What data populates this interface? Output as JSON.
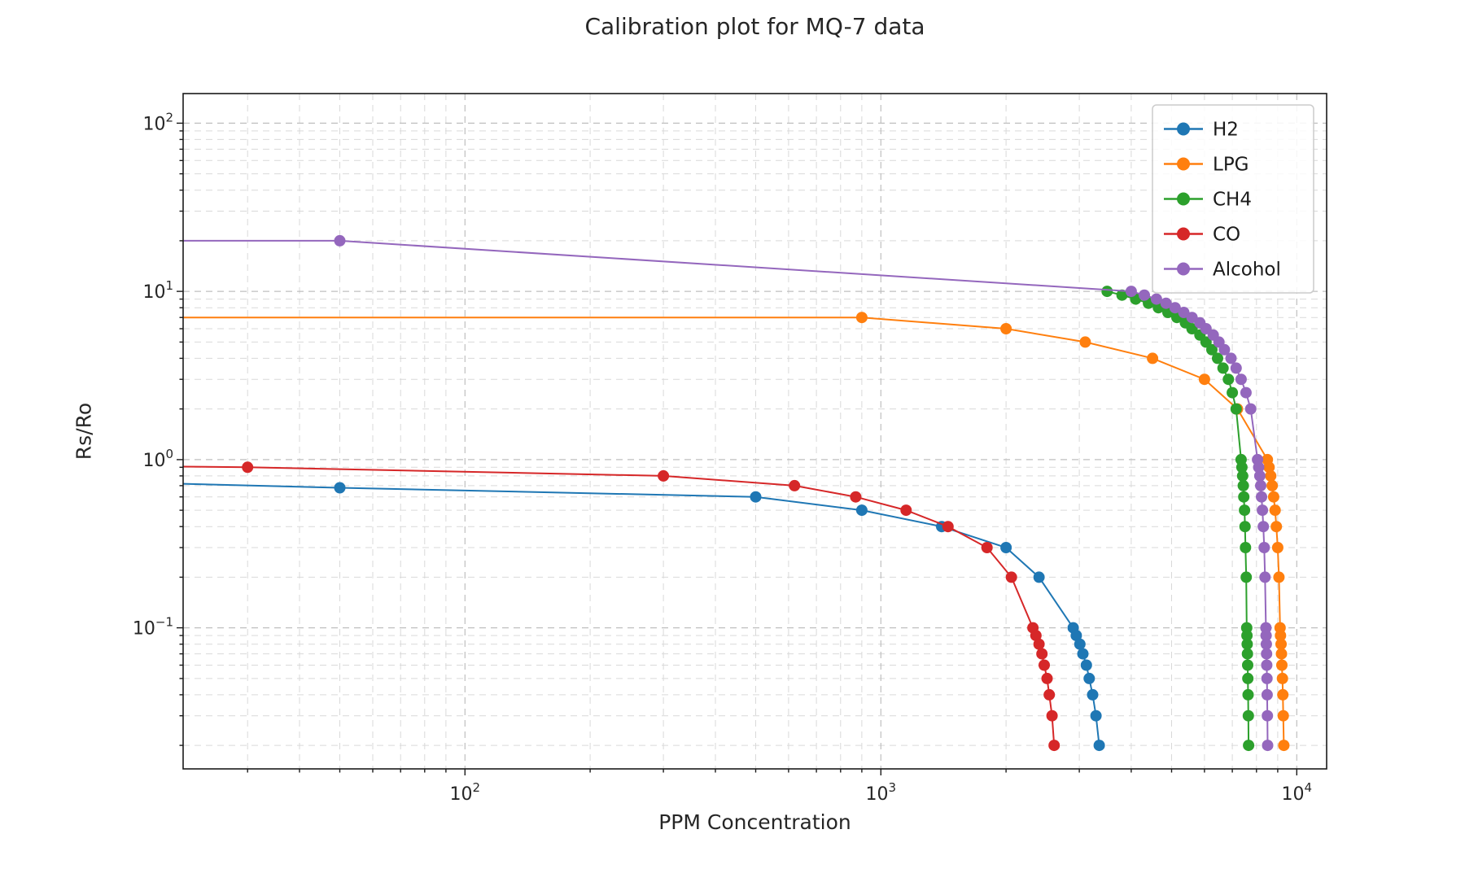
{
  "chart_data": {
    "type": "line",
    "title": "Calibration plot for MQ-7 data",
    "xlabel": "PPM Concentration",
    "ylabel": "Rs/Ro",
    "x_scale": "log",
    "y_scale": "log",
    "xlim": [
      21,
      11800
    ],
    "ylim": [
      0.0145,
      150
    ],
    "x_ticks": [
      100,
      1000,
      10000
    ],
    "y_ticks": [
      0.1,
      1,
      10,
      100
    ],
    "x_tick_labels": [
      "10^2",
      "10^3",
      "10^4"
    ],
    "y_tick_labels": [
      "10^-1",
      "10^0",
      "10^1",
      "10^2"
    ],
    "grid": {
      "which": "both",
      "style": "dashed",
      "major_color": "#bfbfbf",
      "minor_color": "#d9d9d9"
    },
    "legend": {
      "position": "upper right",
      "entries": [
        "H2",
        "LPG",
        "CH4",
        "CO",
        "Alcohol"
      ]
    },
    "series": [
      {
        "name": "H2",
        "color": "#1f77b4",
        "marker": "circle",
        "points": [
          [
            20,
            0.72
          ],
          [
            50,
            0.68
          ],
          [
            500,
            0.6
          ],
          [
            900,
            0.5
          ],
          [
            1400,
            0.4
          ],
          [
            2000,
            0.3
          ],
          [
            2400,
            0.2
          ],
          [
            2900,
            0.1
          ],
          [
            2950,
            0.09
          ],
          [
            3010,
            0.08
          ],
          [
            3060,
            0.07
          ],
          [
            3120,
            0.06
          ],
          [
            3170,
            0.05
          ],
          [
            3230,
            0.04
          ],
          [
            3290,
            0.03
          ],
          [
            3350,
            0.02
          ]
        ]
      },
      {
        "name": "LPG",
        "color": "#ff7f0e",
        "marker": "circle",
        "points": [
          [
            20,
            7
          ],
          [
            900,
            7
          ],
          [
            2000,
            6
          ],
          [
            3100,
            5
          ],
          [
            4500,
            4
          ],
          [
            6000,
            3
          ],
          [
            7200,
            2
          ],
          [
            8500,
            1
          ],
          [
            8580,
            0.9
          ],
          [
            8660,
            0.8
          ],
          [
            8730,
            0.7
          ],
          [
            8800,
            0.6
          ],
          [
            8870,
            0.5
          ],
          [
            8930,
            0.4
          ],
          [
            9000,
            0.3
          ],
          [
            9060,
            0.2
          ],
          [
            9120,
            0.1
          ],
          [
            9140,
            0.09
          ],
          [
            9170,
            0.08
          ],
          [
            9190,
            0.07
          ],
          [
            9210,
            0.06
          ],
          [
            9240,
            0.05
          ],
          [
            9260,
            0.04
          ],
          [
            9280,
            0.03
          ],
          [
            9310,
            0.02
          ]
        ]
      },
      {
        "name": "CH4",
        "color": "#2ca02c",
        "marker": "circle",
        "points": [
          [
            3500,
            10
          ],
          [
            3800,
            9.5
          ],
          [
            4100,
            9
          ],
          [
            4400,
            8.5
          ],
          [
            4650,
            8
          ],
          [
            4900,
            7.5
          ],
          [
            5150,
            7
          ],
          [
            5400,
            6.5
          ],
          [
            5600,
            6
          ],
          [
            5850,
            5.5
          ],
          [
            6050,
            5
          ],
          [
            6250,
            4.5
          ],
          [
            6450,
            4
          ],
          [
            6650,
            3.5
          ],
          [
            6850,
            3
          ],
          [
            7000,
            2.5
          ],
          [
            7150,
            2
          ],
          [
            7350,
            1
          ],
          [
            7380,
            0.9
          ],
          [
            7410,
            0.8
          ],
          [
            7440,
            0.7
          ],
          [
            7460,
            0.6
          ],
          [
            7490,
            0.5
          ],
          [
            7510,
            0.4
          ],
          [
            7530,
            0.3
          ],
          [
            7560,
            0.2
          ],
          [
            7580,
            0.1
          ],
          [
            7590,
            0.09
          ],
          [
            7600,
            0.08
          ],
          [
            7610,
            0.07
          ],
          [
            7620,
            0.06
          ],
          [
            7630,
            0.05
          ],
          [
            7640,
            0.04
          ],
          [
            7650,
            0.03
          ],
          [
            7660,
            0.02
          ]
        ]
      },
      {
        "name": "CO",
        "color": "#d62728",
        "marker": "circle",
        "points": [
          [
            20,
            0.91
          ],
          [
            30,
            0.9
          ],
          [
            300,
            0.8
          ],
          [
            620,
            0.7
          ],
          [
            870,
            0.6
          ],
          [
            1150,
            0.5
          ],
          [
            1450,
            0.4
          ],
          [
            1800,
            0.3
          ],
          [
            2060,
            0.2
          ],
          [
            2320,
            0.1
          ],
          [
            2360,
            0.09
          ],
          [
            2400,
            0.08
          ],
          [
            2440,
            0.07
          ],
          [
            2470,
            0.06
          ],
          [
            2510,
            0.05
          ],
          [
            2540,
            0.04
          ],
          [
            2580,
            0.03
          ],
          [
            2610,
            0.02
          ]
        ]
      },
      {
        "name": "Alcohol",
        "color": "#9467bd",
        "marker": "circle",
        "points": [
          [
            20,
            20
          ],
          [
            50,
            20
          ],
          [
            4000,
            10
          ],
          [
            4300,
            9.5
          ],
          [
            4600,
            9
          ],
          [
            4850,
            8.5
          ],
          [
            5100,
            8
          ],
          [
            5350,
            7.5
          ],
          [
            5600,
            7
          ],
          [
            5850,
            6.5
          ],
          [
            6050,
            6
          ],
          [
            6300,
            5.5
          ],
          [
            6500,
            5
          ],
          [
            6700,
            4.5
          ],
          [
            6950,
            4
          ],
          [
            7150,
            3.5
          ],
          [
            7350,
            3
          ],
          [
            7550,
            2.5
          ],
          [
            7750,
            2
          ],
          [
            8050,
            1
          ],
          [
            8100,
            0.9
          ],
          [
            8150,
            0.8
          ],
          [
            8190,
            0.7
          ],
          [
            8230,
            0.6
          ],
          [
            8270,
            0.5
          ],
          [
            8310,
            0.4
          ],
          [
            8350,
            0.3
          ],
          [
            8390,
            0.2
          ],
          [
            8430,
            0.1
          ],
          [
            8440,
            0.09
          ],
          [
            8450,
            0.08
          ],
          [
            8460,
            0.07
          ],
          [
            8470,
            0.06
          ],
          [
            8480,
            0.05
          ],
          [
            8490,
            0.04
          ],
          [
            8500,
            0.03
          ],
          [
            8510,
            0.02
          ]
        ]
      }
    ]
  }
}
